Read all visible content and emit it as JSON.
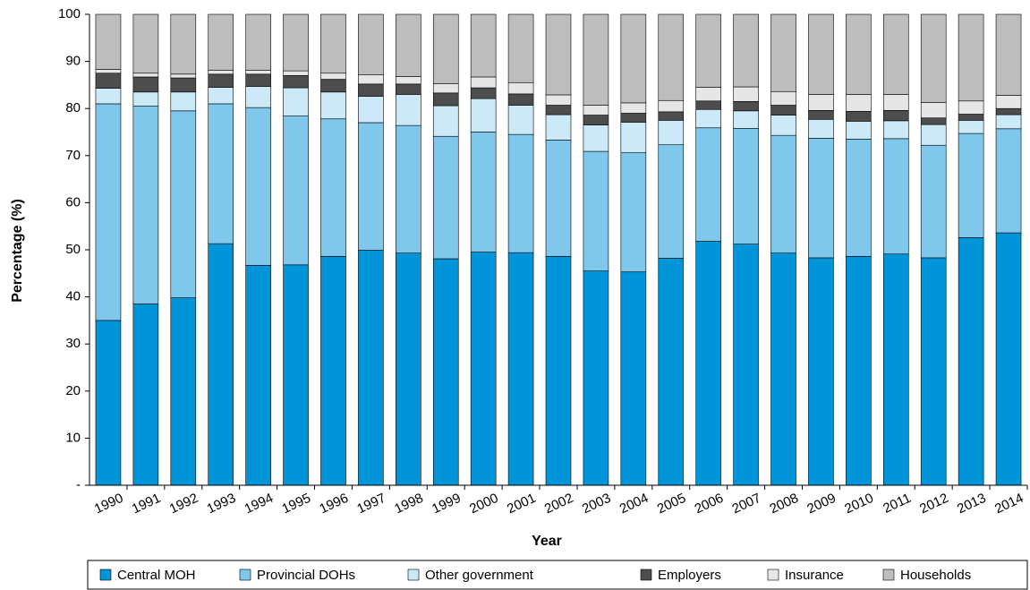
{
  "chart_data": {
    "type": "stacked_bar",
    "x_label": "Year",
    "y_label": "Percentage (%)",
    "categories": [
      "1990",
      "1991",
      "1992",
      "1993",
      "1994",
      "1995",
      "1996",
      "1997",
      "1998",
      "1999",
      "2000",
      "2001",
      "2002",
      "2003",
      "2004",
      "2005",
      "2006",
      "2007",
      "2008",
      "2009",
      "2010",
      "2011",
      "2012",
      "2013",
      "2014"
    ],
    "series": [
      {
        "name": "Central MOH",
        "color": "#0095d8",
        "values": [
          35,
          38.5,
          39.8,
          51.3,
          46.7,
          46.8,
          48.6,
          49.9,
          49.3,
          48.1,
          49.5,
          49.4,
          48.6,
          45.5,
          45.3,
          48.2,
          51.8,
          51.2,
          49.3,
          48.3,
          48.6,
          49.1,
          48.3,
          52.6,
          53.6
        ]
      },
      {
        "name": "Provincial DOHs",
        "color": "#7fc8ec",
        "values": [
          46,
          42,
          39.7,
          29.7,
          33.5,
          31.6,
          29.2,
          27.1,
          27.1,
          26,
          25.5,
          25.1,
          24.7,
          25.4,
          25.3,
          24.1,
          24.1,
          24.6,
          25,
          25.4,
          24.9,
          24.5,
          23.9,
          22.1,
          22.1
        ]
      },
      {
        "name": "Other government",
        "color": "#cce9f8",
        "values": [
          3.3,
          3,
          4,
          3.5,
          4.5,
          6,
          5.7,
          5.6,
          6.6,
          6.5,
          7.1,
          6.2,
          5.4,
          5.6,
          6.5,
          5.2,
          3.9,
          3.7,
          4.3,
          4,
          3.8,
          3.8,
          4.4,
          2.8,
          3
        ]
      },
      {
        "name": "Employers",
        "color": "#4d4d4d",
        "values": [
          3.2,
          3.2,
          3,
          2.8,
          2.6,
          2.6,
          2.7,
          2.6,
          2.2,
          2.7,
          2.3,
          2.4,
          2,
          2.1,
          1.9,
          1.8,
          1.8,
          2,
          2.1,
          1.9,
          2.1,
          2.2,
          1.4,
          1.3,
          1.3
        ]
      },
      {
        "name": "Insurance",
        "color": "#e6e6e6",
        "values": [
          0.8,
          0.8,
          0.8,
          0.8,
          0.8,
          1,
          1.3,
          2,
          1.6,
          2,
          2.3,
          2.4,
          2.2,
          2.1,
          2.2,
          2.4,
          2.9,
          3.1,
          2.9,
          3.4,
          3.6,
          3.4,
          3.3,
          2.8,
          2.8
        ]
      },
      {
        "name": "Households",
        "color": "#bdbdbd",
        "values": [
          11.7,
          12.5,
          12.7,
          11.9,
          11.9,
          12,
          12.5,
          12.8,
          13.2,
          14.7,
          13.3,
          14.5,
          17.1,
          19.3,
          18.8,
          18.3,
          15.5,
          15.4,
          16.4,
          17,
          17,
          17,
          18.7,
          18.4,
          17.2
        ]
      }
    ],
    "ylim": [
      0,
      100
    ],
    "yticks": [
      {
        "value": 0,
        "label": "-"
      },
      10,
      20,
      30,
      40,
      50,
      60,
      70,
      80,
      90,
      100
    ],
    "grid": false,
    "legend": "bottom"
  }
}
